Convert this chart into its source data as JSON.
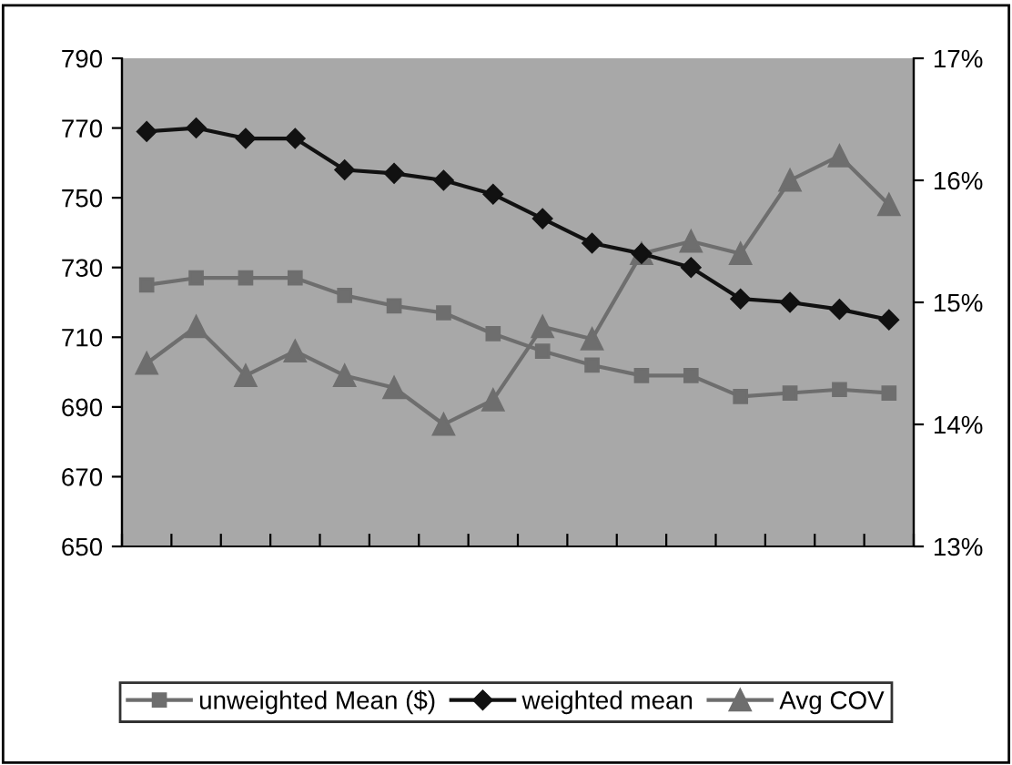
{
  "chart_data": {
    "type": "line",
    "categories": [
      null,
      null,
      null,
      null,
      null,
      null,
      null,
      null,
      null,
      null,
      null,
      null,
      null,
      null,
      null,
      null
    ],
    "series": [
      {
        "name": "unweighted Mean ($)",
        "color": "#6e6e6e",
        "marker": "square",
        "values": [
          725,
          727,
          727,
          727,
          722,
          719,
          717,
          711,
          706,
          702,
          699,
          699,
          693,
          694,
          695,
          694
        ]
      },
      {
        "name": "weighted mean",
        "color": "#111111",
        "marker": "diamond",
        "values": [
          769,
          770,
          767,
          767,
          758,
          757,
          755,
          751,
          744,
          737,
          734,
          730,
          721,
          720,
          718,
          715
        ]
      },
      {
        "name": "Avg COV",
        "color": "#6e6e6e",
        "marker": "triangle",
        "axis": "y2",
        "values": [
          14.5,
          14.8,
          14.4,
          14.6,
          14.4,
          14.3,
          14.0,
          14.2,
          14.8,
          14.7,
          15.4,
          15.5,
          15.4,
          16.0,
          16.2,
          15.8
        ]
      }
    ],
    "ylim": [
      650,
      790
    ],
    "yticks": [
      650,
      670,
      690,
      710,
      730,
      750,
      770,
      790
    ],
    "y2lim": [
      13,
      17
    ],
    "y2ticks": [
      {
        "value": 13,
        "label": "13%"
      },
      {
        "value": 14,
        "label": "14%"
      },
      {
        "value": 15,
        "label": "15%"
      },
      {
        "value": 16,
        "label": "16%"
      },
      {
        "value": 17,
        "label": "17%"
      }
    ],
    "grid": false,
    "legend": "bottom",
    "line_style": "solid"
  }
}
